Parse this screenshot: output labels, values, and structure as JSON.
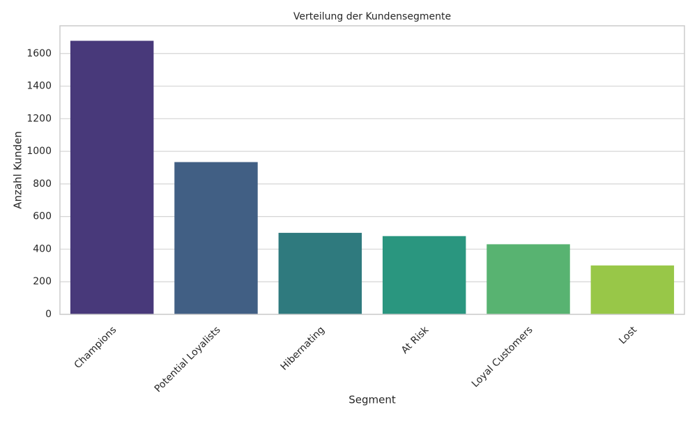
{
  "chart_data": {
    "type": "bar",
    "title": "Verteilung der Kundensegmente",
    "x_label": "Segment",
    "y_label": "Anzahl Kunden",
    "categories": [
      "Champions",
      "Potential Loyalists",
      "Hibernating",
      "At Risk",
      "Loyal Customers",
      "Lost"
    ],
    "values": [
      1678,
      934,
      500,
      480,
      430,
      300
    ],
    "colors": [
      "#48397a",
      "#415f84",
      "#2f7a7e",
      "#2a967f",
      "#58b371",
      "#98c748"
    ],
    "ylim": [
      0,
      1770
    ],
    "yticks": [
      0,
      200,
      400,
      600,
      800,
      1000,
      1200,
      1400,
      1600
    ],
    "grid": true
  }
}
